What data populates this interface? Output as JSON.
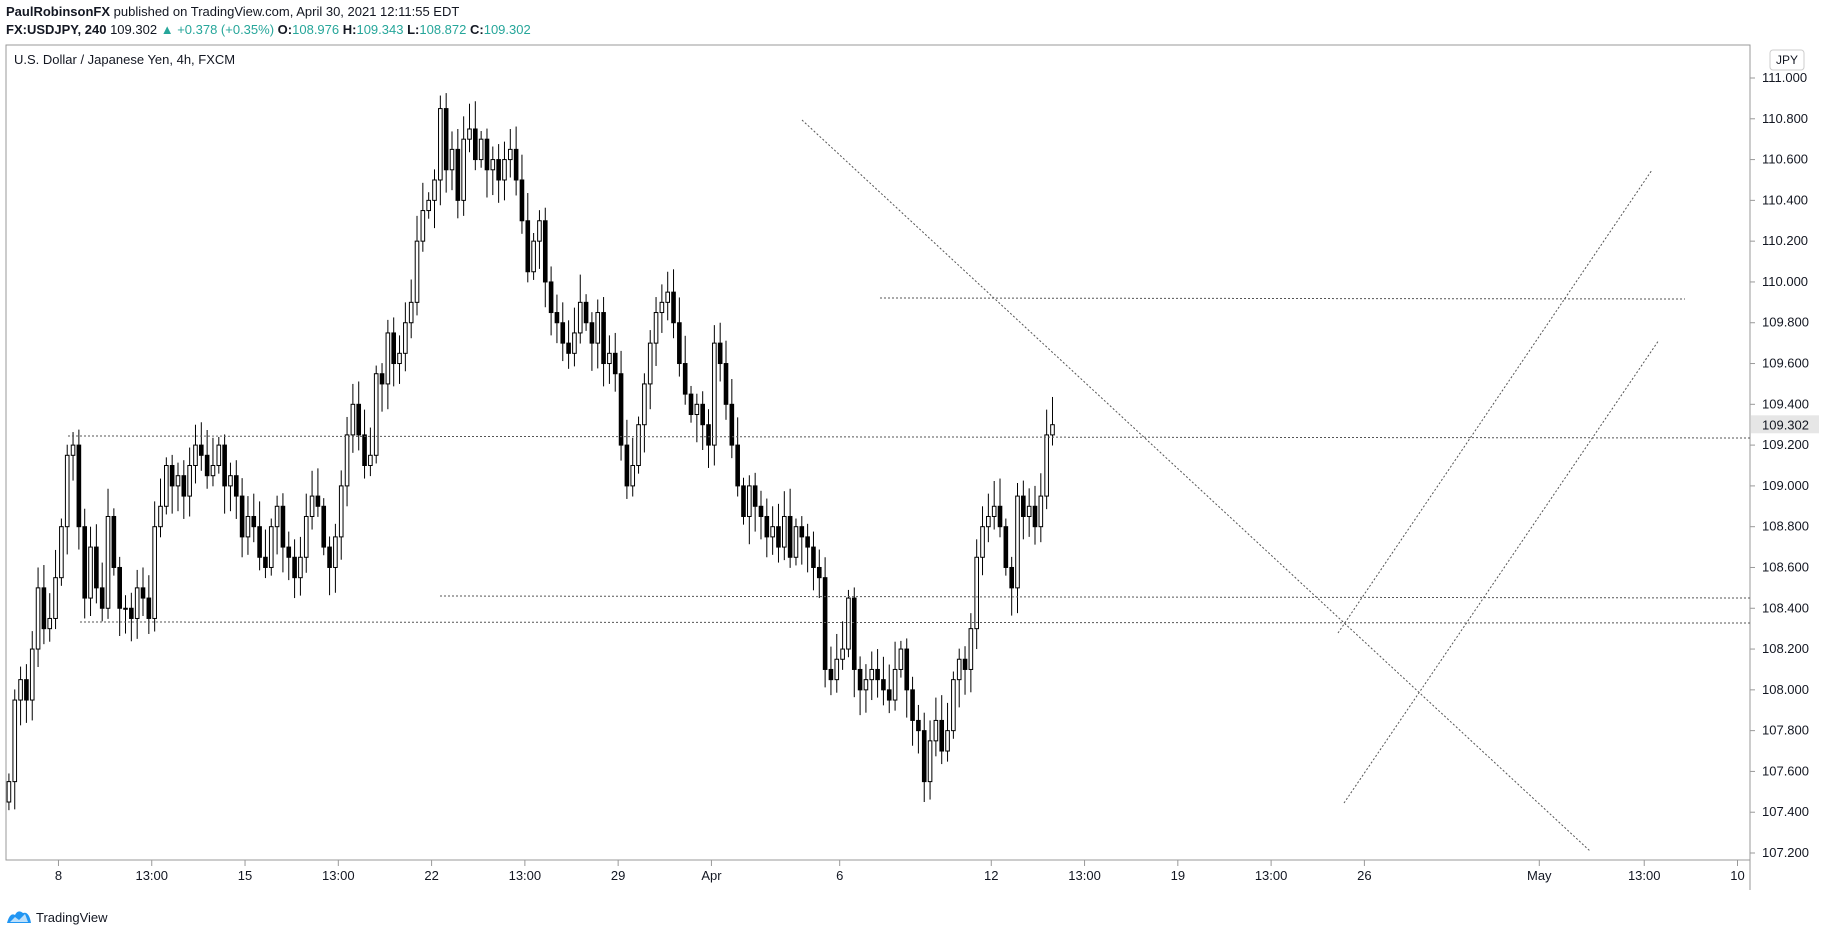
{
  "header": {
    "author": "PaulRobinsonFX",
    "published": "published on TradingView.com, April 30, 2021 12:11:55 EDT",
    "symbol": "FX:USDJPY, 240",
    "last": "109.302",
    "change": "+0.378 (+0.35%)",
    "o_label": "O:",
    "o": "108.976",
    "h_label": "H:",
    "h": "109.343",
    "l_label": "L:",
    "l": "108.872",
    "c_label": "C:",
    "c": "109.302"
  },
  "footer": {
    "brand": "TradingView"
  },
  "colors": {
    "up_body": "#ffffff",
    "down_body": "#000000",
    "wick": "#000000",
    "grid": "#e0e3eb",
    "text": "#131722",
    "last_price_bg": "#e6e6e6"
  },
  "chart_data": {
    "type": "candlestick",
    "title": "U.S. Dollar / Japanese Yen, 4h, FXCM",
    "currency_label": "JPY",
    "last_price_label": "109.302",
    "y_ticks": [
      "111.000",
      "110.800",
      "110.600",
      "110.400",
      "110.200",
      "110.000",
      "109.800",
      "109.600",
      "109.400",
      "109.200",
      "109.000",
      "108.800",
      "108.600",
      "108.400",
      "108.200",
      "108.000",
      "107.800",
      "107.600",
      "107.400",
      "107.200"
    ],
    "ylim": [
      107.2,
      111.0
    ],
    "x_ticks": [
      {
        "i": 9,
        "label": "8"
      },
      {
        "i": 25,
        "label": "13:00"
      },
      {
        "i": 41,
        "label": "15"
      },
      {
        "i": 57,
        "label": "13:00"
      },
      {
        "i": 73,
        "label": "22"
      },
      {
        "i": 89,
        "label": "13:00"
      },
      {
        "i": 105,
        "label": "29"
      },
      {
        "i": 121,
        "label": "Apr"
      },
      {
        "i": 143,
        "label": "6"
      },
      {
        "i": 169,
        "label": "12"
      },
      {
        "i": 185,
        "label": "13:00"
      },
      {
        "i": 201,
        "label": "19"
      },
      {
        "i": 217,
        "label": "13:00"
      },
      {
        "i": 233,
        "label": "26"
      },
      {
        "i": 263,
        "label": "May"
      },
      {
        "i": 281,
        "label": "13:00"
      },
      {
        "i": 297,
        "label": "10"
      }
    ],
    "closes": [
      107.55,
      107.95,
      108.05,
      107.95,
      108.2,
      108.5,
      108.3,
      108.35,
      108.55,
      108.8,
      109.15,
      109.2,
      108.8,
      108.45,
      108.7,
      108.5,
      108.4,
      108.85,
      108.6,
      108.4,
      108.4,
      108.35,
      108.5,
      108.45,
      108.35,
      108.8,
      108.9,
      109.1,
      109.0,
      109.05,
      108.95,
      109.1,
      109.2,
      109.15,
      109.05,
      109.1,
      109.2,
      109.0,
      109.05,
      108.95,
      108.75,
      108.85,
      108.8,
      108.65,
      108.6,
      108.8,
      108.9,
      108.7,
      108.65,
      108.55,
      108.65,
      108.85,
      108.95,
      108.9,
      108.7,
      108.6,
      108.75,
      109.0,
      109.25,
      109.4,
      109.25,
      109.1,
      109.15,
      109.55,
      109.5,
      109.75,
      109.6,
      109.65,
      109.8,
      109.9,
      110.2,
      110.35,
      110.4,
      110.5,
      110.85,
      110.55,
      110.65,
      110.4,
      110.7,
      110.75,
      110.6,
      110.7,
      110.55,
      110.6,
      110.5,
      110.6,
      110.65,
      110.5,
      110.3,
      110.05,
      110.2,
      110.3,
      110.0,
      109.85,
      109.8,
      109.7,
      109.65,
      109.75,
      109.9,
      109.8,
      109.7,
      109.85,
      109.6,
      109.65,
      109.55,
      109.2,
      109.0,
      109.1,
      109.3,
      109.5,
      109.7,
      109.85,
      109.9,
      109.95,
      109.8,
      109.6,
      109.45,
      109.35,
      109.4,
      109.3,
      109.2,
      109.7,
      109.6,
      109.4,
      109.2,
      109.0,
      108.85,
      109.0,
      108.9,
      108.85,
      108.75,
      108.8,
      108.7,
      108.85,
      108.65,
      108.8,
      108.75,
      108.7,
      108.6,
      108.55,
      108.1,
      108.05,
      108.15,
      108.2,
      108.45,
      108.1,
      108.0,
      108.05,
      108.1,
      108.05,
      108.0,
      107.95,
      108.1,
      108.2,
      108.0,
      107.85,
      107.8,
      107.55,
      107.75,
      107.85,
      107.7,
      107.8,
      108.05,
      108.15,
      108.1,
      108.3,
      108.65,
      108.8,
      108.85,
      108.9,
      108.8,
      108.6,
      108.5,
      108.95,
      108.85,
      108.9,
      108.8,
      108.95,
      109.25,
      109.3
    ],
    "visible_x_range": [
      0,
      300
    ]
  }
}
